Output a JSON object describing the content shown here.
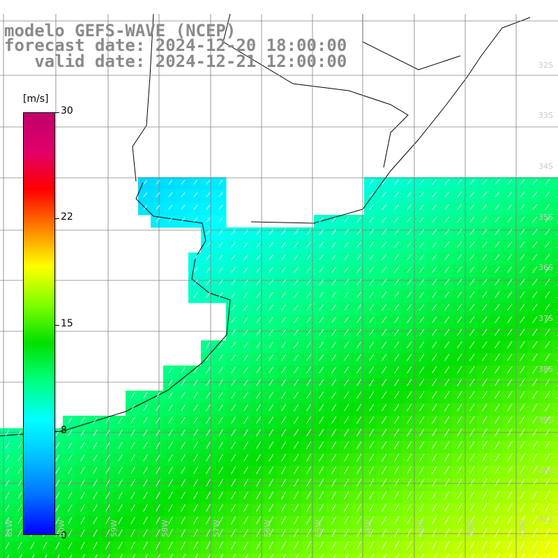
{
  "title": {
    "line1": "modelo GEFS-WAVE (NCEP)",
    "line2": "forecast date: 2024-12-20 18:00:00",
    "line3": "   valid date: 2024-12-21 12:00:00"
  },
  "colorbar": {
    "unit": "[m/s]",
    "ticks": [
      "30",
      "22",
      "15",
      "8",
      "0"
    ],
    "range": [
      0,
      30
    ],
    "colors": [
      "#0000ff",
      "#0070ff",
      "#00c0ff",
      "#00ffff",
      "#00ff80",
      "#00e000",
      "#80ff00",
      "#ffff00",
      "#ff8000",
      "#ff0000",
      "#e0006a",
      "#c0006a"
    ]
  },
  "map": {
    "lat_labels": [
      "32S",
      "33S",
      "34S",
      "35S",
      "36S",
      "37S",
      "38S",
      "39S",
      "40S",
      "41S"
    ],
    "lon_labels": [
      "61W",
      "60W",
      "59W",
      "58W",
      "57W",
      "56W",
      "55W",
      "54W",
      "53W",
      "52W",
      "51W"
    ],
    "land_color": "#ffffff",
    "grid_color": "#808080",
    "coast_color": "#000000"
  }
}
